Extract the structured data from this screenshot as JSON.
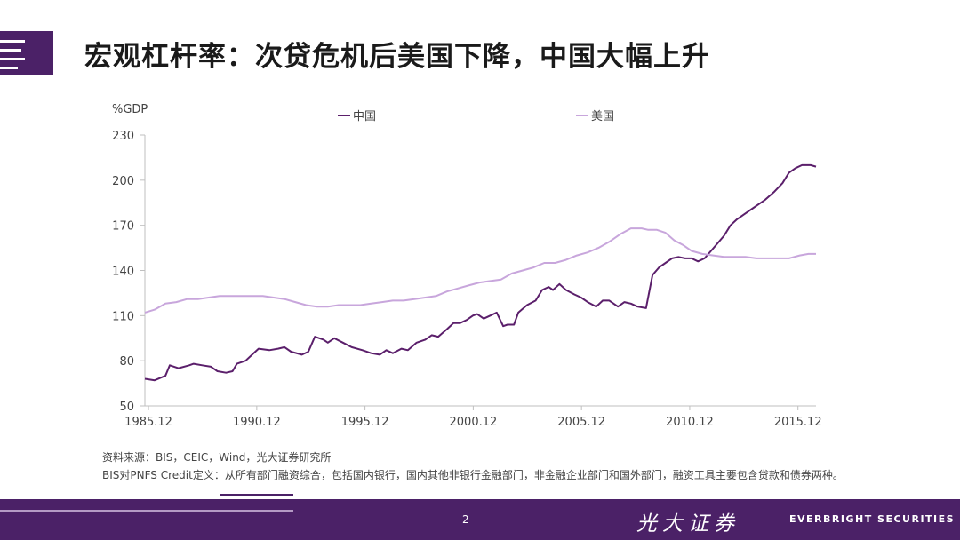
{
  "header": {
    "title": "宏观杠杆率：次贷危机后美国下降，中国大幅上升"
  },
  "chart_data": {
    "type": "line",
    "ylabel": "%GDP",
    "ylim": [
      50,
      230
    ],
    "yticks": [
      50,
      80,
      110,
      140,
      170,
      200,
      230
    ],
    "xlim": [
      1985.75,
      2016.75
    ],
    "xticks": [
      {
        "label": "1985.12",
        "value": 1985.917
      },
      {
        "label": "1990.12",
        "value": 1990.917
      },
      {
        "label": "1995.12",
        "value": 1995.917
      },
      {
        "label": "2000.12",
        "value": 2000.917
      },
      {
        "label": "2005.12",
        "value": 2005.917
      },
      {
        "label": "2010.12",
        "value": 2010.917
      },
      {
        "label": "2015.12",
        "value": 2015.917
      }
    ],
    "legend_placement": "top",
    "series": [
      {
        "name": "中国",
        "color": "#5b1f6b",
        "points": [
          [
            1985.75,
            68
          ],
          [
            1986.2,
            67
          ],
          [
            1986.7,
            70
          ],
          [
            1986.9,
            77
          ],
          [
            1987.3,
            75
          ],
          [
            1987.8,
            77
          ],
          [
            1988.0,
            78
          ],
          [
            1988.4,
            77
          ],
          [
            1988.8,
            76
          ],
          [
            1989.1,
            73
          ],
          [
            1989.5,
            72
          ],
          [
            1989.8,
            73
          ],
          [
            1990.0,
            78
          ],
          [
            1990.4,
            80
          ],
          [
            1990.7,
            84
          ],
          [
            1991.0,
            88
          ],
          [
            1991.5,
            87
          ],
          [
            1991.9,
            88
          ],
          [
            1992.2,
            89
          ],
          [
            1992.5,
            86
          ],
          [
            1993.0,
            84
          ],
          [
            1993.3,
            86
          ],
          [
            1993.6,
            96
          ],
          [
            1994.0,
            94
          ],
          [
            1994.2,
            92
          ],
          [
            1994.5,
            95
          ],
          [
            1994.9,
            92
          ],
          [
            1995.3,
            89
          ],
          [
            1995.8,
            87
          ],
          [
            1996.2,
            85
          ],
          [
            1996.6,
            84
          ],
          [
            1996.9,
            87
          ],
          [
            1997.2,
            85
          ],
          [
            1997.6,
            88
          ],
          [
            1997.9,
            87
          ],
          [
            1998.3,
            92
          ],
          [
            1998.7,
            94
          ],
          [
            1999.0,
            97
          ],
          [
            1999.3,
            96
          ],
          [
            1999.7,
            101
          ],
          [
            2000.0,
            105
          ],
          [
            2000.3,
            105
          ],
          [
            2000.6,
            107
          ],
          [
            2000.9,
            110
          ],
          [
            2001.1,
            111
          ],
          [
            2001.4,
            108
          ],
          [
            2001.7,
            110
          ],
          [
            2002.0,
            112
          ],
          [
            2002.3,
            103
          ],
          [
            2002.5,
            104
          ],
          [
            2002.8,
            104
          ],
          [
            2003.0,
            112
          ],
          [
            2003.4,
            117
          ],
          [
            2003.8,
            120
          ],
          [
            2004.1,
            127
          ],
          [
            2004.4,
            129
          ],
          [
            2004.6,
            127
          ],
          [
            2004.9,
            131
          ],
          [
            2005.2,
            127
          ],
          [
            2005.6,
            124
          ],
          [
            2005.9,
            122
          ],
          [
            2006.2,
            119
          ],
          [
            2006.6,
            116
          ],
          [
            2006.9,
            120
          ],
          [
            2007.2,
            120
          ],
          [
            2007.6,
            116
          ],
          [
            2007.9,
            119
          ],
          [
            2008.2,
            118
          ],
          [
            2008.5,
            116
          ],
          [
            2008.9,
            115
          ],
          [
            2009.2,
            137
          ],
          [
            2009.5,
            142
          ],
          [
            2009.8,
            145
          ],
          [
            2010.1,
            148
          ],
          [
            2010.4,
            149
          ],
          [
            2010.7,
            148
          ],
          [
            2011.0,
            148
          ],
          [
            2011.3,
            146
          ],
          [
            2011.6,
            148
          ],
          [
            2011.9,
            153
          ],
          [
            2012.2,
            158
          ],
          [
            2012.5,
            163
          ],
          [
            2012.8,
            170
          ],
          [
            2013.1,
            174
          ],
          [
            2013.4,
            177
          ],
          [
            2013.8,
            181
          ],
          [
            2014.1,
            184
          ],
          [
            2014.4,
            187
          ],
          [
            2014.8,
            192
          ],
          [
            2015.2,
            198
          ],
          [
            2015.5,
            205
          ],
          [
            2015.8,
            208
          ],
          [
            2016.1,
            210
          ],
          [
            2016.5,
            210
          ],
          [
            2016.75,
            209
          ]
        ]
      },
      {
        "name": "美国",
        "color": "#c8a6dc",
        "points": [
          [
            1985.75,
            112
          ],
          [
            1986.2,
            114
          ],
          [
            1986.7,
            118
          ],
          [
            1987.2,
            119
          ],
          [
            1987.7,
            121
          ],
          [
            1988.2,
            121
          ],
          [
            1988.7,
            122
          ],
          [
            1989.2,
            123
          ],
          [
            1989.7,
            123
          ],
          [
            1990.2,
            123
          ],
          [
            1990.7,
            123
          ],
          [
            1991.2,
            123
          ],
          [
            1991.7,
            122
          ],
          [
            1992.2,
            121
          ],
          [
            1992.7,
            119
          ],
          [
            1993.2,
            117
          ],
          [
            1993.7,
            116
          ],
          [
            1994.2,
            116
          ],
          [
            1994.7,
            117
          ],
          [
            1995.2,
            117
          ],
          [
            1995.7,
            117
          ],
          [
            1996.2,
            118
          ],
          [
            1996.7,
            119
          ],
          [
            1997.2,
            120
          ],
          [
            1997.7,
            120
          ],
          [
            1998.2,
            121
          ],
          [
            1998.7,
            122
          ],
          [
            1999.2,
            123
          ],
          [
            1999.7,
            126
          ],
          [
            2000.2,
            128
          ],
          [
            2000.7,
            130
          ],
          [
            2001.2,
            132
          ],
          [
            2001.7,
            133
          ],
          [
            2002.2,
            134
          ],
          [
            2002.7,
            138
          ],
          [
            2003.2,
            140
          ],
          [
            2003.7,
            142
          ],
          [
            2004.2,
            145
          ],
          [
            2004.7,
            145
          ],
          [
            2005.2,
            147
          ],
          [
            2005.7,
            150
          ],
          [
            2006.2,
            152
          ],
          [
            2006.7,
            155
          ],
          [
            2007.2,
            159
          ],
          [
            2007.7,
            164
          ],
          [
            2008.2,
            168
          ],
          [
            2008.7,
            168
          ],
          [
            2009.0,
            167
          ],
          [
            2009.4,
            167
          ],
          [
            2009.8,
            165
          ],
          [
            2010.2,
            160
          ],
          [
            2010.6,
            157
          ],
          [
            2011.0,
            153
          ],
          [
            2011.5,
            151
          ],
          [
            2012.0,
            150
          ],
          [
            2012.5,
            149
          ],
          [
            2013.0,
            149
          ],
          [
            2013.5,
            149
          ],
          [
            2014.0,
            148
          ],
          [
            2014.5,
            148
          ],
          [
            2015.0,
            148
          ],
          [
            2015.5,
            148
          ],
          [
            2016.0,
            150
          ],
          [
            2016.4,
            151
          ],
          [
            2016.75,
            151
          ]
        ]
      }
    ]
  },
  "notes": {
    "source": "资料来源：BIS，CEIC，Wind，光大证券研究所",
    "definition": "BIS对PNFS Credit定义：从所有部门融资综合，包括国内银行，国内其他非银行金融部门，非金融企业部门和国外部门，融资工具主要包含贷款和债券两种。"
  },
  "footer": {
    "page_number": "2",
    "brand_cn": "光大证券",
    "brand_en": "EVERBRIGHT SECURITIES"
  },
  "colors": {
    "accent": "#4b2167",
    "axis": "#bfbfbf"
  }
}
